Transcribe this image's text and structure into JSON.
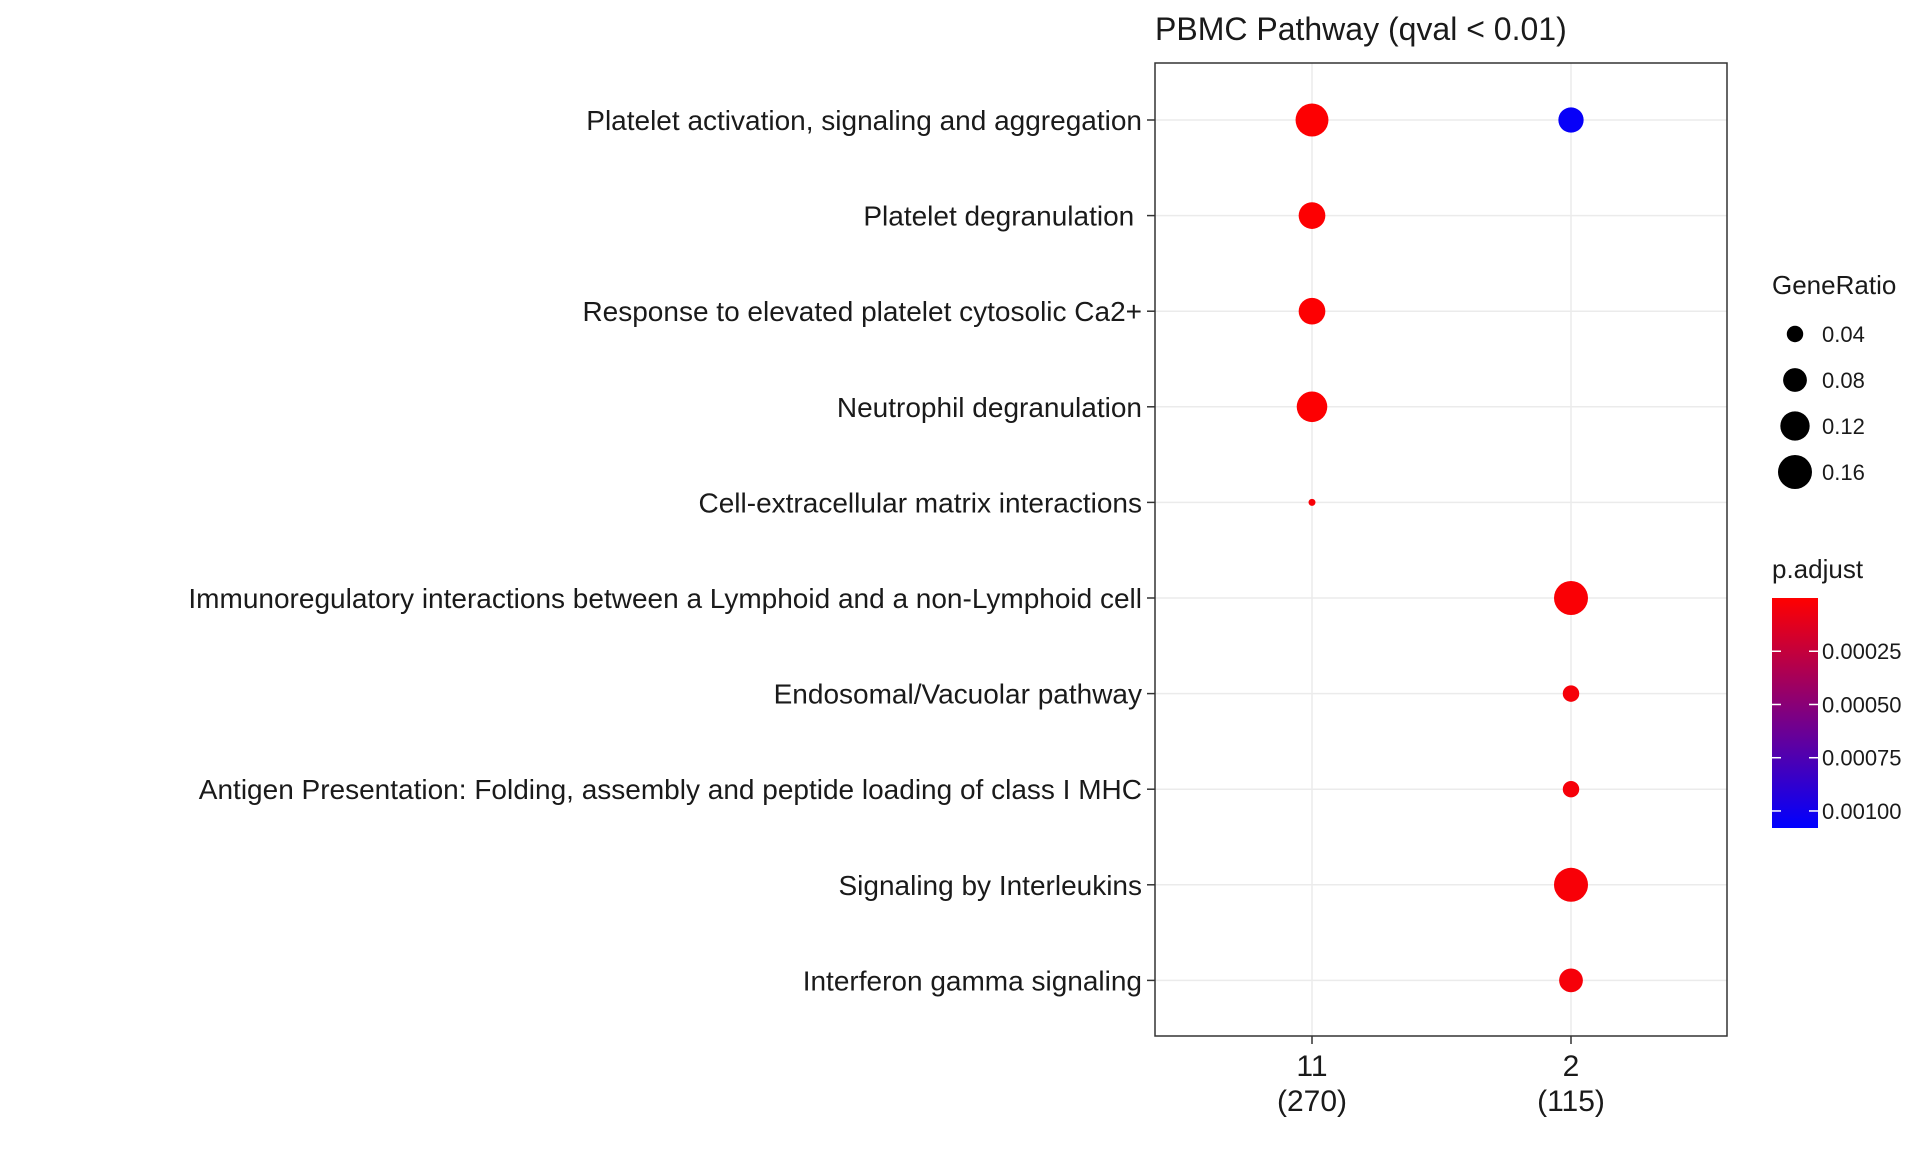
{
  "chart_data": {
    "type": "scatter",
    "title": "PBMC Pathway (qval < 0.01)",
    "xlabel": "",
    "ylabel": "",
    "categories": [
      {
        "main": "11",
        "sub": "(270)"
      },
      {
        "main": "2",
        "sub": "(115)"
      }
    ],
    "pathways": [
      "Platelet activation, signaling and aggregation",
      "Platelet degranulation ",
      "Response to elevated platelet cytosolic Ca2+",
      "Neutrophil degranulation",
      "Cell-extracellular matrix interactions",
      "Immunoregulatory interactions between a Lymphoid and a non-Lymphoid cell",
      "Endosomal/Vacuolar pathway",
      "Antigen Presentation: Folding, assembly and peptide loading of class I MHC",
      "Signaling by Interleukins",
      "Interferon gamma signaling"
    ],
    "points": [
      {
        "x": "11",
        "y": "Platelet activation, signaling and aggregation",
        "gene_ratio": 0.15,
        "p_adjust": 1e-05
      },
      {
        "x": "2",
        "y": "Platelet activation, signaling and aggregation",
        "gene_ratio": 0.09,
        "p_adjust": 0.00105
      },
      {
        "x": "11",
        "y": "Platelet degranulation ",
        "gene_ratio": 0.1,
        "p_adjust": 1e-05
      },
      {
        "x": "11",
        "y": "Response to elevated platelet cytosolic Ca2+",
        "gene_ratio": 0.1,
        "p_adjust": 1e-05
      },
      {
        "x": "11",
        "y": "Neutrophil degranulation",
        "gene_ratio": 0.13,
        "p_adjust": 1e-05
      },
      {
        "x": "11",
        "y": "Cell-extracellular matrix interactions",
        "gene_ratio": 0.01,
        "p_adjust": 3e-05
      },
      {
        "x": "2",
        "y": "Immunoregulatory interactions between a Lymphoid and a non-Lymphoid cell",
        "gene_ratio": 0.16,
        "p_adjust": 2e-05
      },
      {
        "x": "2",
        "y": "Endosomal/Vacuolar pathway",
        "gene_ratio": 0.04,
        "p_adjust": 4e-05
      },
      {
        "x": "2",
        "y": "Antigen Presentation: Folding, assembly and peptide loading of class I MHC",
        "gene_ratio": 0.04,
        "p_adjust": 4e-05
      },
      {
        "x": "2",
        "y": "Signaling by Interleukins",
        "gene_ratio": 0.16,
        "p_adjust": 3e-05
      },
      {
        "x": "2",
        "y": "Interferon gamma signaling",
        "gene_ratio": 0.08,
        "p_adjust": 4e-05
      }
    ],
    "size_legend": {
      "title": "GeneRatio",
      "labels": [
        "0.04",
        "0.08",
        "0.12",
        "0.16"
      ],
      "values": [
        0.04,
        0.08,
        0.12,
        0.16
      ],
      "range": [
        0.01,
        0.16
      ]
    },
    "color_legend": {
      "title": "p.adjust",
      "labels": [
        "0.00025",
        "0.00050",
        "0.00075",
        "0.00100"
      ],
      "values": [
        0.00025,
        0.0005,
        0.00075,
        0.001
      ],
      "range": [
        0.0,
        0.00108
      ],
      "low_color": "#ff0000",
      "high_color": "#0000ff"
    },
    "grid": true,
    "legend_position": "right",
    "colors": {
      "grid": "#ebebeb",
      "panel_border": "#333333",
      "text": "#1a1a1a"
    }
  }
}
